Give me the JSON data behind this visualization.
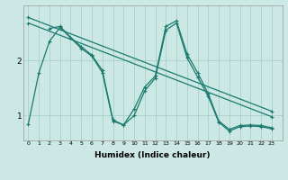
{
  "xlabel": "Humidex (Indice chaleur)",
  "bg_color": "#cce8e4",
  "grid_color": "#aacfcb",
  "line_color": "#1a7a6e",
  "yticks": [
    1,
    2
  ],
  "xtick_labels": [
    "0",
    "1",
    "2",
    "3",
    "4",
    "5",
    "6",
    "7",
    "8",
    "9",
    "1011",
    "1213",
    "1415",
    "1617",
    "1819",
    "2021",
    "2223"
  ],
  "xlim": [
    -0.5,
    24
  ],
  "ylim": [
    0.55,
    3.0
  ],
  "series": [
    {
      "x": [
        0,
        1,
        2,
        3,
        5,
        6,
        7,
        8,
        9,
        10,
        11,
        12,
        13,
        14,
        15,
        16,
        17,
        18,
        19,
        20,
        21,
        22,
        23
      ],
      "y": [
        0.85,
        1.78,
        2.35,
        2.6,
        2.22,
        2.08,
        1.78,
        0.9,
        0.83,
        1.12,
        1.52,
        1.72,
        2.62,
        2.72,
        2.12,
        1.78,
        1.4,
        0.9,
        0.75,
        0.82,
        0.83,
        0.82,
        0.78
      ]
    },
    {
      "x": [
        2,
        3,
        4,
        5,
        6,
        7,
        8,
        9,
        10,
        11,
        12,
        13,
        14,
        15,
        16,
        17,
        18,
        19,
        20,
        21,
        22,
        23
      ],
      "y": [
        2.58,
        2.62,
        2.42,
        2.25,
        2.1,
        1.82,
        0.92,
        0.83,
        1.0,
        1.45,
        1.68,
        2.55,
        2.68,
        2.05,
        1.7,
        1.35,
        0.88,
        0.72,
        0.8,
        0.81,
        0.8,
        0.76
      ]
    },
    {
      "x": [
        0,
        23
      ],
      "y": [
        2.78,
        1.08
      ]
    },
    {
      "x": [
        0,
        23
      ],
      "y": [
        2.68,
        0.98
      ]
    }
  ]
}
